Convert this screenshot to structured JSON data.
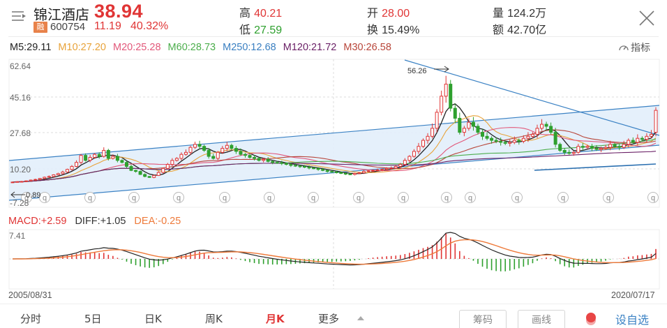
{
  "header": {
    "stock_name": "锦江酒店",
    "price": "38.94",
    "badge": "融",
    "code": "600754",
    "change": "11.19",
    "change_pct": "40.32%",
    "stats": {
      "high_label": "高",
      "high": "40.21",
      "low_label": "低",
      "low": "27.59",
      "open_label": "开",
      "open": "28.00",
      "turnover_label": "换",
      "turnover": "15.49%",
      "volume_label": "量",
      "volume": "124.2万",
      "amount_label": "额",
      "amount": "42.70亿"
    }
  },
  "ma_legend": [
    {
      "label": "M5:29.11",
      "color": "#222222"
    },
    {
      "label": "M10:27.20",
      "color": "#e8a33a"
    },
    {
      "label": "M20:25.28",
      "color": "#e2587a"
    },
    {
      "label": "M60:28.73",
      "color": "#4cae4c"
    },
    {
      "label": "M250:12.68",
      "color": "#3a7fc1"
    },
    {
      "label": "M120:21.72",
      "color": "#6b2167"
    },
    {
      "label": "M30:26.58",
      "color": "#b8463a"
    }
  ],
  "indicator_button": "指标",
  "main_axis": {
    "labels": [
      "62.64",
      "45.16",
      "27.68",
      "10.20",
      "-7.28"
    ],
    "max_marker": "56.26",
    "min_marker": "0.89"
  },
  "macd_legend": {
    "macd": "MACD:+2.59",
    "diff": "DIFF:+1.05",
    "dea": "DEA:-0.25",
    "top_label": "7.41"
  },
  "dates": {
    "start": "2005/08/31",
    "end": "2020/07/17"
  },
  "bottom_tabs": [
    {
      "label": "分时",
      "active": false
    },
    {
      "label": "5日",
      "active": false
    },
    {
      "label": "日K",
      "active": false
    },
    {
      "label": "周K",
      "active": false
    },
    {
      "label": "月K",
      "active": true
    },
    {
      "label": "更多",
      "active": false
    }
  ],
  "buttons": {
    "chips": "筹码",
    "draw": "画线",
    "add_favorite": "设自选"
  },
  "colors": {
    "up": "#e03535",
    "down": "#2ea02e",
    "accent_blue": "#3b82c4",
    "channel_fill": "#e2eefb"
  },
  "chart_data": {
    "type": "candlestick",
    "title": "锦江酒店 600754 月K",
    "x_range": [
      "2005/08/31",
      "2020/07/17"
    ],
    "ylim": [
      -7.28,
      62.64
    ],
    "y_ticks": [
      62.64,
      45.16,
      27.68,
      10.2,
      -7.28
    ],
    "annotations": [
      {
        "text": "56.26",
        "type": "max"
      },
      {
        "text": "0.89",
        "type": "min"
      }
    ],
    "close_series": [
      3.2,
      3.4,
      3.5,
      3.8,
      4.2,
      4.5,
      5.0,
      5.6,
      6.0,
      6.8,
      7.4,
      8.2,
      9.5,
      11.0,
      13.0,
      16.5,
      14.0,
      15.5,
      17.0,
      16.0,
      19.0,
      15.0,
      16.0,
      14.0,
      13.0,
      11.0,
      9.0,
      8.5,
      7.0,
      6.0,
      5.5,
      6.5,
      8.0,
      10.0,
      12.0,
      14.0,
      15.0,
      17.0,
      18.0,
      20.5,
      22.0,
      21.0,
      19.0,
      16.0,
      15.0,
      18.0,
      20.0,
      21.5,
      20.0,
      18.5,
      17.0,
      16.5,
      15.5,
      15.0,
      14.0,
      14.5,
      13.5,
      13.0,
      12.8,
      12.5,
      12.0,
      11.5,
      11.2,
      11.0,
      10.6,
      10.2,
      10.0,
      9.5,
      9.0,
      8.5,
      8.2,
      8.0,
      7.5,
      7.2,
      7.0,
      7.5,
      7.8,
      8.5,
      8.8,
      9.0,
      9.2,
      9.5,
      10.0,
      10.2,
      11.0,
      12.0,
      14.0,
      16.0,
      18.5,
      21.0,
      24.0,
      26.0,
      30.0,
      38.0,
      46.0,
      52.0,
      40.0,
      35.0,
      28.0,
      30.0,
      33.0,
      31.0,
      28.0,
      26.0,
      25.0,
      24.0,
      23.5,
      23.0,
      22.5,
      23.0,
      24.0,
      23.5,
      25.0,
      26.0,
      27.0,
      30.0,
      32.0,
      31.0,
      28.0,
      22.0,
      19.0,
      18.0,
      17.5,
      18.0,
      21.0,
      20.5,
      21.0,
      20.0,
      19.5,
      20.0,
      20.5,
      22.0,
      21.0,
      20.5,
      22.0,
      24.0,
      23.0,
      25.0,
      24.5,
      26.0,
      27.0,
      38.94
    ],
    "macd": {
      "ylim_top": 7.41,
      "diff_last": 1.05,
      "dea_last": -0.25,
      "macd_last": 2.59
    }
  }
}
